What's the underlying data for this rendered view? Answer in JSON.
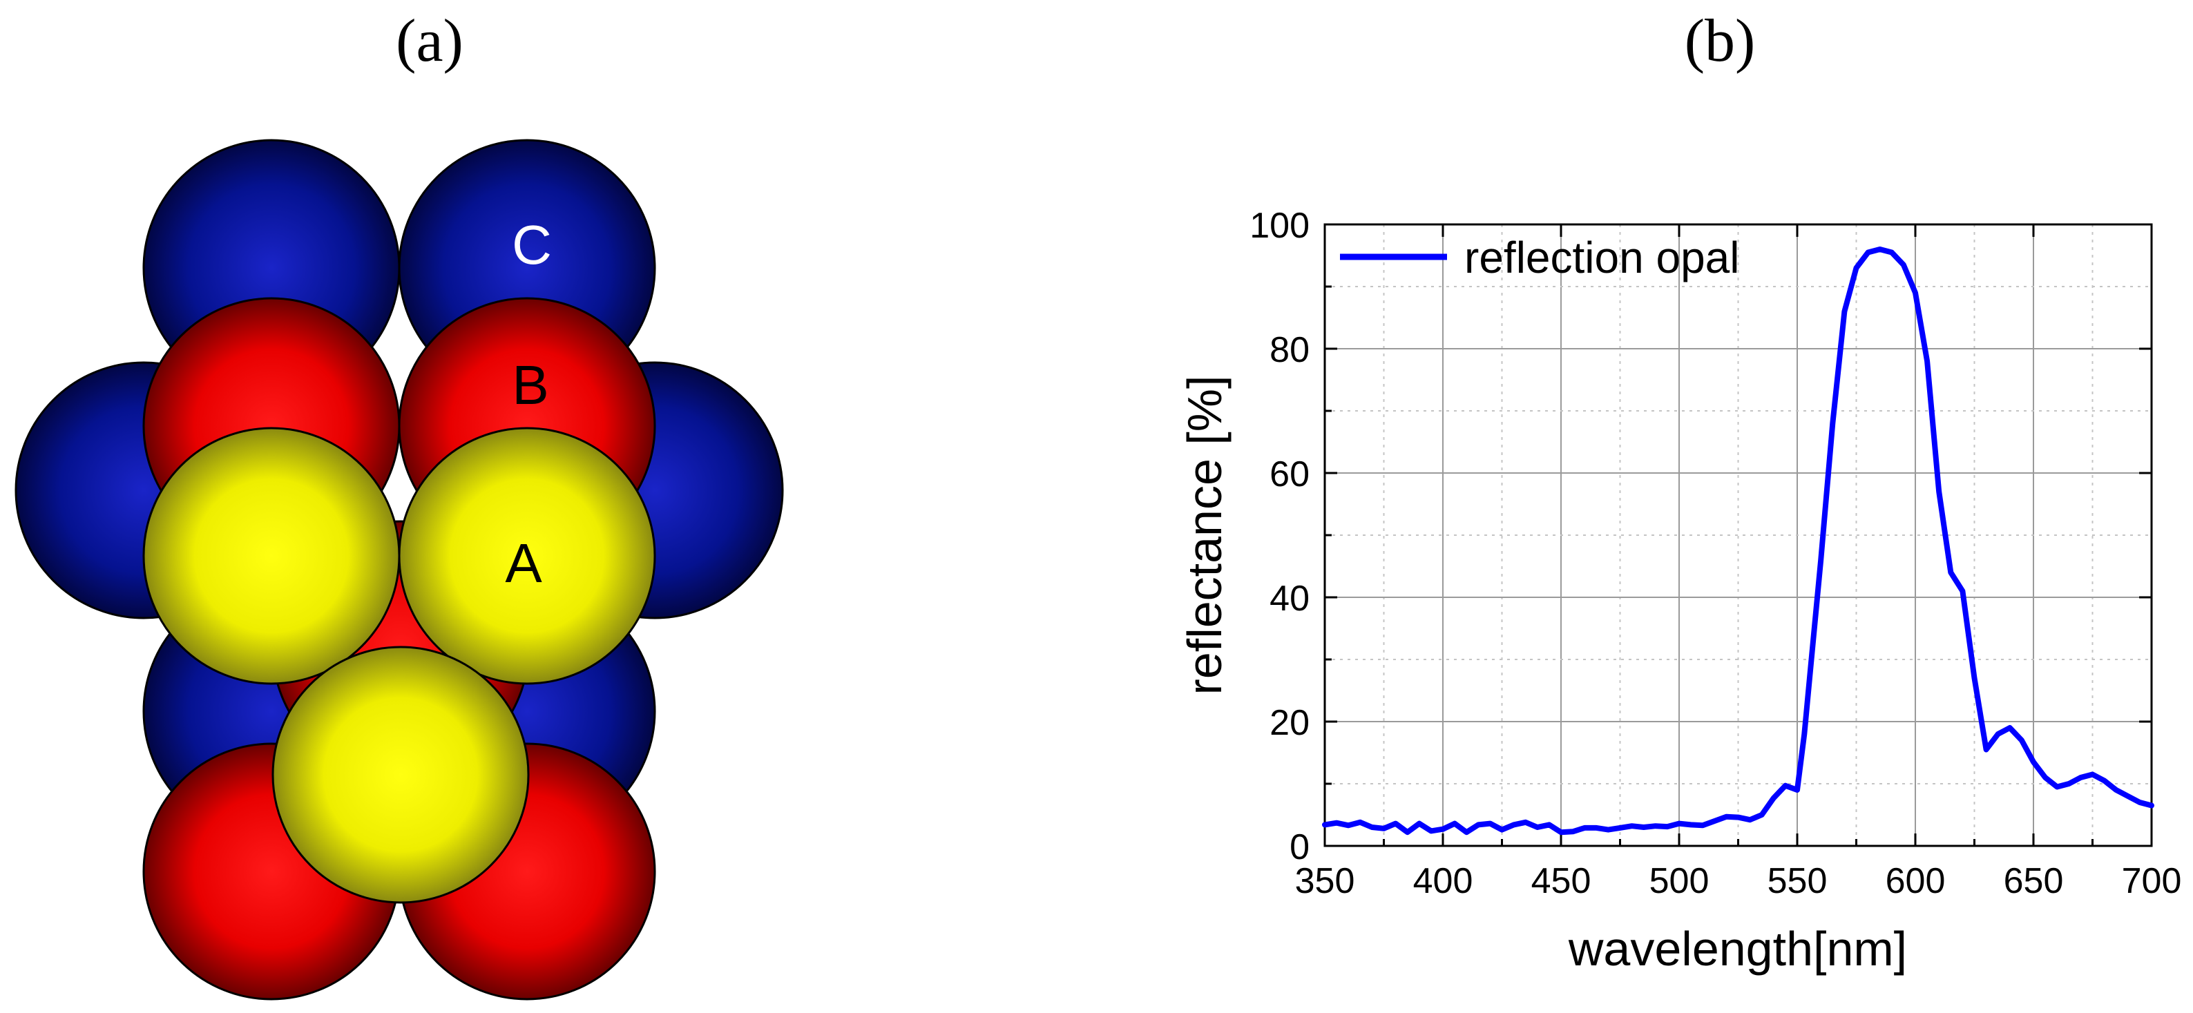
{
  "panels": {
    "a_label": "(a)",
    "b_label": "(b)"
  },
  "sphere_diagram": {
    "layer_labels": {
      "c": "C",
      "b": "B",
      "a": "A"
    },
    "colors": {
      "c_layer": "#00006e",
      "b_layer": "#ff0000",
      "a_layer": "#f4f000"
    }
  },
  "chart_data": {
    "type": "line",
    "title": "",
    "xlabel": "wavelength[nm]",
    "ylabel": "reflectance [%]",
    "xlim": [
      350,
      700
    ],
    "ylim": [
      0,
      100
    ],
    "x_ticks": [
      "350",
      "400",
      "450",
      "500",
      "550",
      "600",
      "650",
      "700"
    ],
    "y_ticks": [
      "0",
      "20",
      "40",
      "60",
      "80",
      "100"
    ],
    "grid": true,
    "legend_position": "top-left",
    "series": [
      {
        "name": "reflection opal",
        "color": "#0000ff",
        "x": [
          350,
          355,
          360,
          365,
          370,
          375,
          380,
          385,
          390,
          395,
          400,
          405,
          410,
          415,
          420,
          425,
          430,
          435,
          440,
          445,
          450,
          455,
          460,
          465,
          470,
          475,
          480,
          485,
          490,
          495,
          500,
          505,
          510,
          515,
          520,
          525,
          530,
          535,
          540,
          545,
          550,
          553,
          556,
          560,
          565,
          570,
          575,
          580,
          585,
          590,
          595,
          600,
          605,
          610,
          615,
          620,
          625,
          630,
          635,
          640,
          645,
          650,
          655,
          660,
          665,
          670,
          675,
          680,
          685,
          690,
          695,
          700
        ],
        "y": [
          3.4,
          3.7,
          3.3,
          3.8,
          3.0,
          2.8,
          3.6,
          2.2,
          3.6,
          2.4,
          2.7,
          3.6,
          2.2,
          3.4,
          3.6,
          2.6,
          3.4,
          3.8,
          3.0,
          3.4,
          2.2,
          2.3,
          2.9,
          2.9,
          2.6,
          2.9,
          3.2,
          3.0,
          3.2,
          3.1,
          3.6,
          3.4,
          3.3,
          4.0,
          4.7,
          4.6,
          4.2,
          5.0,
          7.7,
          9.7,
          9.0,
          18.0,
          30.0,
          46.0,
          68.0,
          86.0,
          93.0,
          95.5,
          96.0,
          95.5,
          93.5,
          89.0,
          78.0,
          57.0,
          44.0,
          41.0,
          27.0,
          15.5,
          18.0,
          19.0,
          17.0,
          13.5,
          11.0,
          9.5,
          10.0,
          11.0,
          11.5,
          10.5,
          9.0,
          8.0,
          7.0,
          6.5
        ]
      }
    ]
  }
}
